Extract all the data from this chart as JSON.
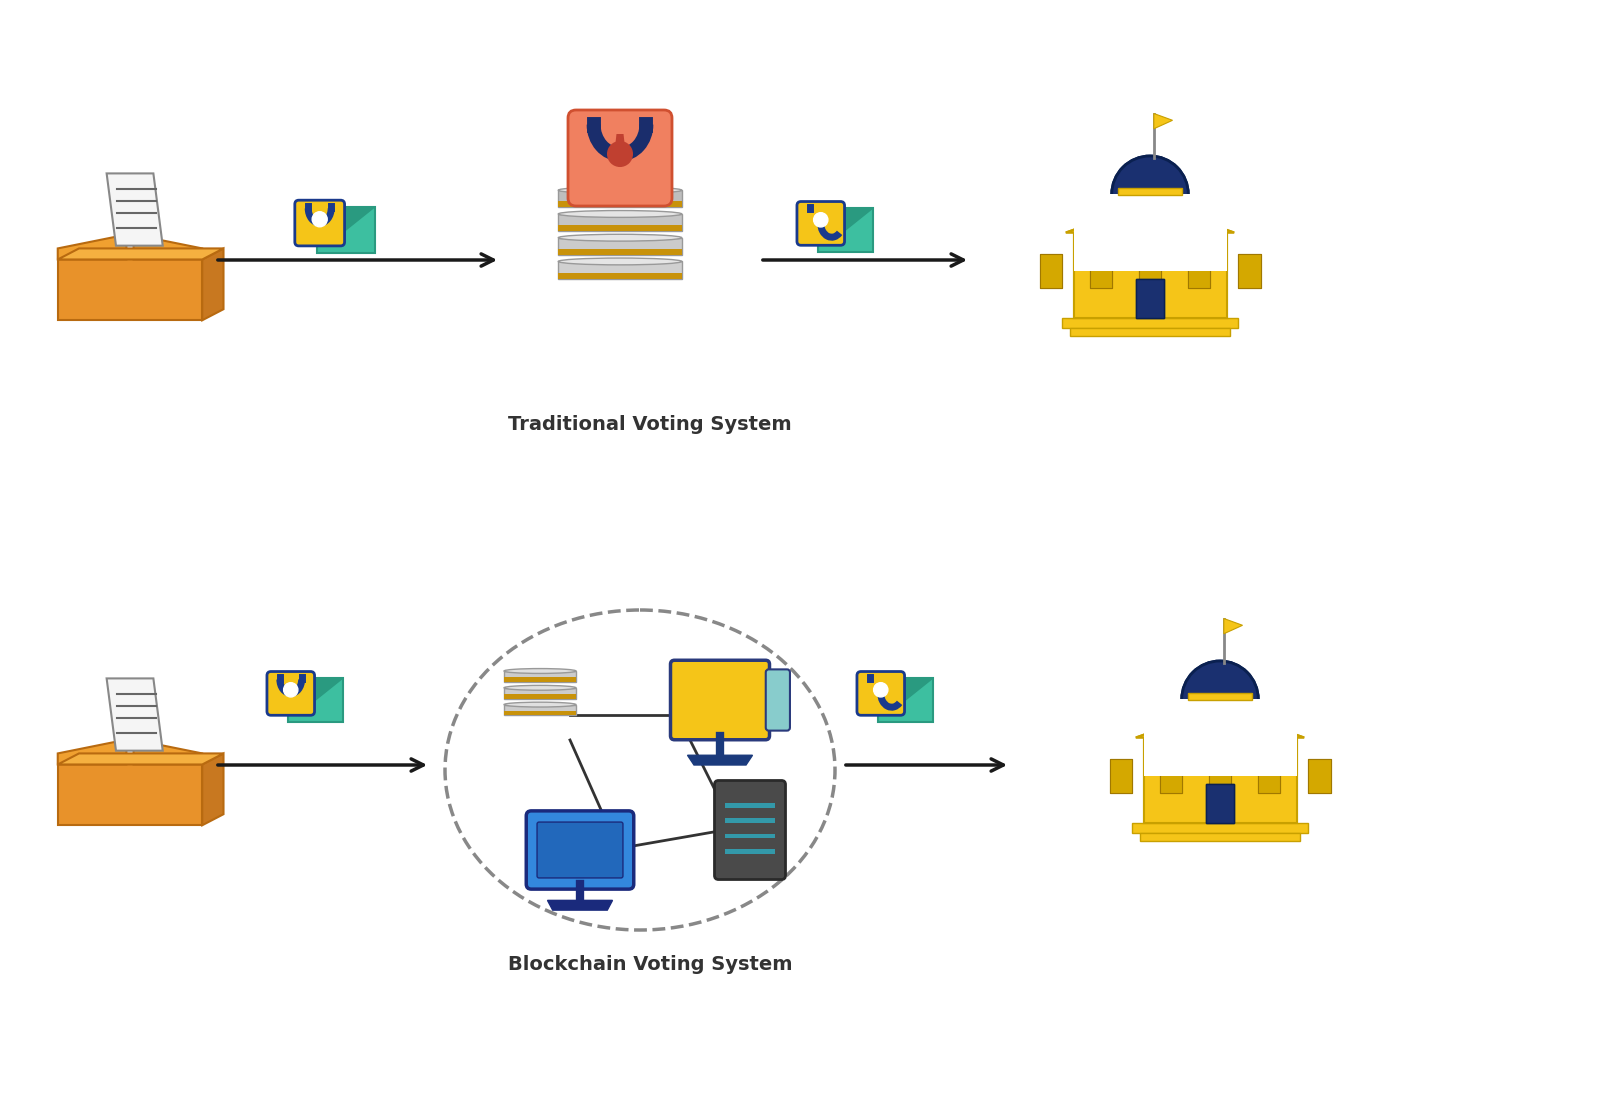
{
  "bg_color": "#ffffff",
  "top_label": "Traditional Voting System",
  "bottom_label": "Blockchain Voting System",
  "label_fontsize": 14,
  "arrow_color": "#1a1a1a",
  "arrow_lw": 2.5
}
